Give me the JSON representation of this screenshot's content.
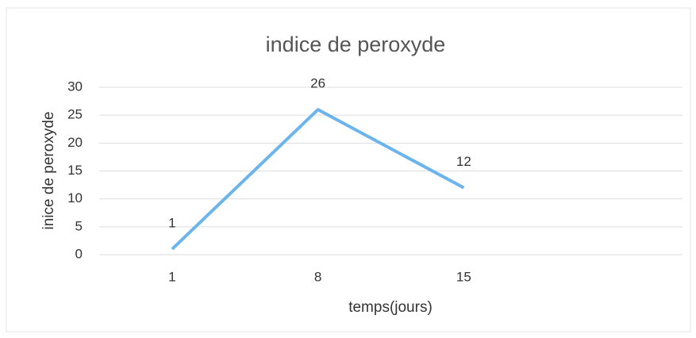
{
  "chart_data": {
    "type": "line",
    "title": "indice de peroxyde",
    "x_label": "temps(jours)",
    "y_label": "inice de peroxyde",
    "categories": [
      "1",
      "8",
      "15",
      null
    ],
    "series": [
      {
        "name": "indice de peroxyde",
        "color": "#6cb4ec",
        "values": [
          1,
          26,
          12,
          null
        ]
      }
    ],
    "ylim": [
      0,
      30
    ],
    "yticks": [
      0,
      5,
      10,
      15,
      20,
      25,
      30
    ],
    "grid": true,
    "data_labels": true
  }
}
